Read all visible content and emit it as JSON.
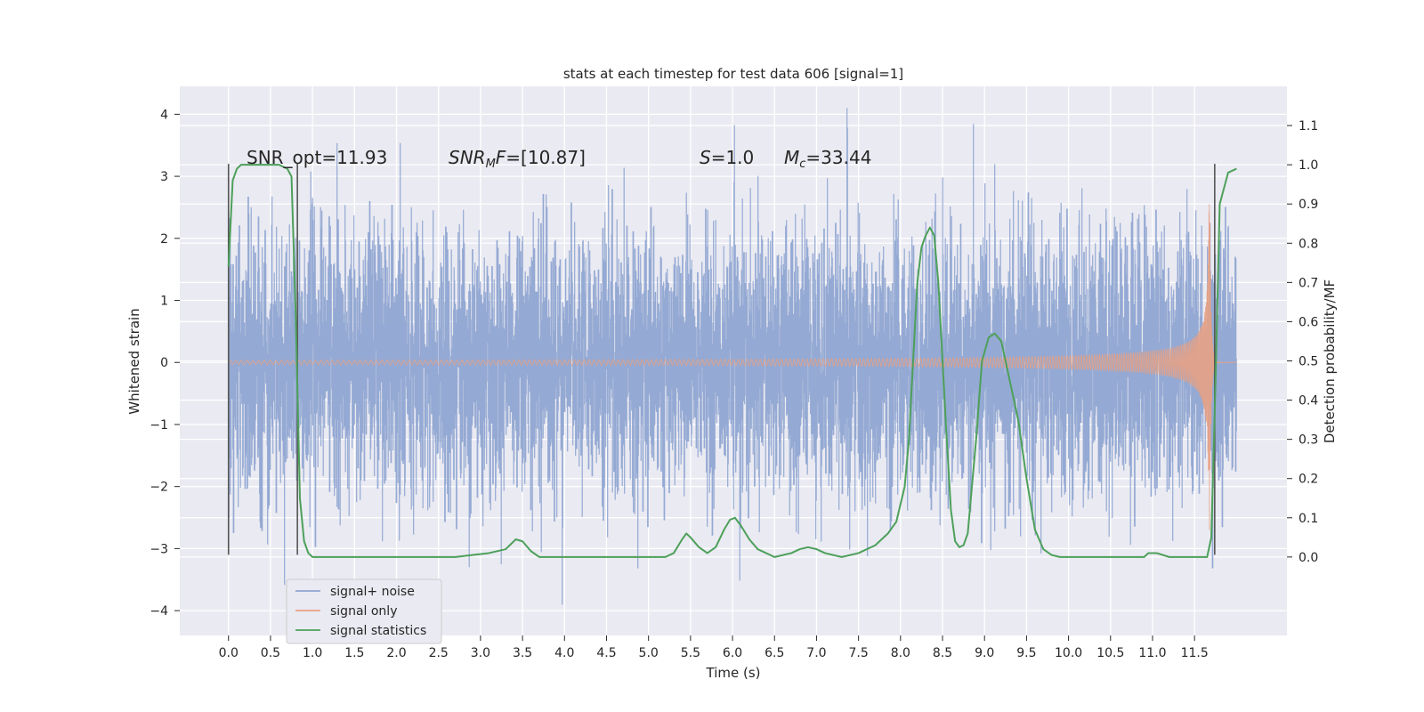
{
  "chart_data": {
    "type": "line",
    "title": "stats at each timestep for test data 606 [signal=1]",
    "xlabel": "Time (s)",
    "ylabel": "Whitened strain",
    "ylabel_right": "Detection probability/MF",
    "xlim": [
      -0.58,
      12.6
    ],
    "ylim": [
      -4.4,
      4.45
    ],
    "ylim_right": [
      -0.2,
      1.2
    ],
    "grid": true,
    "x_ticks": [
      0.0,
      0.5,
      1.0,
      1.5,
      2.0,
      2.5,
      3.0,
      3.5,
      4.0,
      4.5,
      5.0,
      5.5,
      6.0,
      6.5,
      7.0,
      7.5,
      8.0,
      8.5,
      9.0,
      9.5,
      10.0,
      10.5,
      11.0,
      11.5
    ],
    "x_tick_labels": [
      "0.0",
      "0.5",
      "1.0",
      "1.5",
      "2.0",
      "2.5",
      "3.0",
      "3.5",
      "4.0",
      "4.5",
      "5.0",
      "5.5",
      "6.0",
      "6.5",
      "7.0",
      "7.5",
      "8.0",
      "8.5",
      "9.0",
      "9.5",
      "10.0",
      "10.5",
      "11.0",
      "11.5"
    ],
    "y_ticks": [
      -4,
      -3,
      -2,
      -1,
      0,
      1,
      2,
      3,
      4
    ],
    "y_tick_labels": [
      "−4",
      "−3",
      "−2",
      "−1",
      "0",
      "1",
      "2",
      "3",
      "4"
    ],
    "y_right_ticks": [
      0.0,
      0.1,
      0.2,
      0.3,
      0.4,
      0.5,
      0.6,
      0.7,
      0.8,
      0.9,
      1.0,
      1.1
    ],
    "y_right_tick_labels": [
      "0.0",
      "0.1",
      "0.2",
      "0.3",
      "0.4",
      "0.5",
      "0.6",
      "0.7",
      "0.8",
      "0.9",
      "1.0",
      "1.1"
    ],
    "legend": {
      "position": "lower-left",
      "entries": [
        {
          "label": "signal+ noise",
          "color": "#8fa5d1"
        },
        {
          "label": "signal only",
          "color": "#e7a184"
        },
        {
          "label": "signal statistics",
          "color": "#4da05a"
        }
      ]
    },
    "annotations": [
      {
        "text": "SNR_opt=11.93",
        "x": 0.2,
        "y": 3.3
      },
      {
        "text": "SNR_MF=[10.87]",
        "x": 2.6,
        "y": 3.3
      },
      {
        "text": "S=1.0",
        "x": 5.6,
        "y": 3.3
      },
      {
        "text": "M_c=33.44",
        "x": 6.6,
        "y": 3.3
      }
    ],
    "vlines": [
      {
        "x": 0.0,
        "ymin": -3.1,
        "ymax": 3.2
      },
      {
        "x": 0.82,
        "ymin": -3.1,
        "ymax": 3.2
      },
      {
        "x": 11.74,
        "ymin": -3.1,
        "ymax": 3.2
      }
    ],
    "series": [
      {
        "name": "signal+ noise",
        "axis": "left",
        "style": "dense-noise",
        "x_range": [
          0.0,
          12.0
        ],
        "sample_rate": 256,
        "std": 1.0
      },
      {
        "name": "signal only",
        "axis": "left",
        "style": "chirp",
        "x_range": [
          0.0,
          12.0
        ],
        "merger_time": 11.68,
        "peak_amplitude": 2.8
      },
      {
        "name": "signal statistics",
        "axis": "right",
        "x": [
          0.0,
          0.05,
          0.1,
          0.15,
          0.2,
          0.3,
          0.4,
          0.5,
          0.6,
          0.7,
          0.75,
          0.8,
          0.85,
          0.9,
          0.95,
          1.0,
          1.1,
          1.3,
          1.6,
          2.0,
          2.5,
          2.7,
          2.9,
          3.1,
          3.3,
          3.42,
          3.5,
          3.6,
          3.7,
          3.8,
          4.0,
          4.5,
          5.0,
          5.2,
          5.3,
          5.4,
          5.45,
          5.5,
          5.6,
          5.7,
          5.8,
          5.9,
          5.97,
          6.03,
          6.1,
          6.2,
          6.3,
          6.5,
          6.7,
          6.8,
          6.9,
          7.0,
          7.1,
          7.3,
          7.5,
          7.7,
          7.85,
          7.95,
          8.05,
          8.1,
          8.15,
          8.2,
          8.25,
          8.3,
          8.35,
          8.4,
          8.45,
          8.5,
          8.55,
          8.6,
          8.65,
          8.7,
          8.75,
          8.8,
          8.9,
          8.97,
          9.05,
          9.12,
          9.2,
          9.3,
          9.4,
          9.5,
          9.6,
          9.7,
          9.8,
          9.9,
          10.1,
          10.5,
          10.8,
          10.9,
          10.95,
          11.05,
          11.2,
          11.5,
          11.65,
          11.7,
          11.75,
          11.8,
          11.9,
          12.0
        ],
        "y": [
          0.74,
          0.96,
          0.99,
          1.0,
          1.0,
          1.0,
          1.0,
          1.0,
          1.0,
          0.99,
          0.97,
          0.62,
          0.15,
          0.04,
          0.01,
          0.0,
          0.0,
          0.0,
          0.0,
          0.0,
          0.0,
          0.0,
          0.005,
          0.01,
          0.02,
          0.045,
          0.04,
          0.015,
          0.0,
          0.0,
          0.0,
          0.0,
          0.0,
          0.0,
          0.01,
          0.045,
          0.06,
          0.05,
          0.025,
          0.01,
          0.025,
          0.07,
          0.095,
          0.1,
          0.08,
          0.045,
          0.02,
          0.0,
          0.01,
          0.02,
          0.025,
          0.02,
          0.01,
          0.0,
          0.01,
          0.03,
          0.06,
          0.09,
          0.18,
          0.3,
          0.5,
          0.7,
          0.79,
          0.82,
          0.84,
          0.82,
          0.7,
          0.5,
          0.3,
          0.12,
          0.04,
          0.025,
          0.03,
          0.06,
          0.3,
          0.5,
          0.56,
          0.57,
          0.55,
          0.45,
          0.35,
          0.2,
          0.07,
          0.02,
          0.005,
          0.0,
          0.0,
          0.0,
          0.0,
          0.0,
          0.01,
          0.01,
          0.0,
          0.0,
          0.0,
          0.05,
          0.45,
          0.9,
          0.98,
          0.99
        ]
      }
    ]
  }
}
